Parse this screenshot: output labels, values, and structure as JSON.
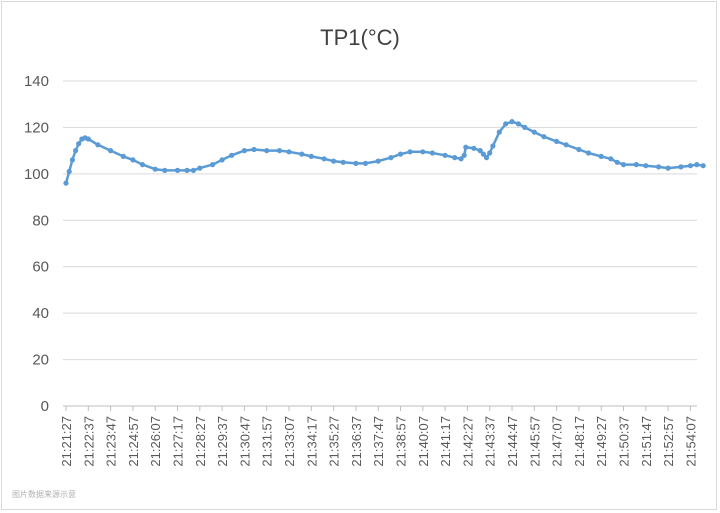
{
  "chart_data": {
    "type": "line",
    "title": "TP1(°C)",
    "xlabel": "",
    "ylabel": "",
    "ylim": [
      0,
      140
    ],
    "yticks": [
      0,
      20,
      40,
      60,
      80,
      100,
      120,
      140
    ],
    "grid": true,
    "legend": "none",
    "x_tick_labels": [
      "21:21:27",
      "21:22:37",
      "21:23:47",
      "21:24:57",
      "21:26:07",
      "21:27:17",
      "21:28:27",
      "21:29:37",
      "21:30:47",
      "21:31:57",
      "21:33:07",
      "21:34:17",
      "21:35:27",
      "21:36:37",
      "21:37:47",
      "21:38:57",
      "21:40:07",
      "21:41:17",
      "21:42:27",
      "21:43:37",
      "21:44:47",
      "21:45:57",
      "21:47:07",
      "21:48:17",
      "21:49:27",
      "21:50:37",
      "21:51:47",
      "21:52:57",
      "21:54:07"
    ],
    "series": [
      {
        "color": "#5b9bd5",
        "points": [
          [
            "21:21:27",
            96
          ],
          [
            "21:21:37",
            101
          ],
          [
            "21:21:47",
            106
          ],
          [
            "21:21:57",
            110
          ],
          [
            "21:22:07",
            113
          ],
          [
            "21:22:17",
            115
          ],
          [
            "21:22:27",
            115.5
          ],
          [
            "21:22:37",
            115
          ],
          [
            "21:23:07",
            112.5
          ],
          [
            "21:23:47",
            110
          ],
          [
            "21:24:27",
            107.5
          ],
          [
            "21:24:57",
            106
          ],
          [
            "21:25:27",
            104
          ],
          [
            "21:26:07",
            102
          ],
          [
            "21:26:37",
            101.5
          ],
          [
            "21:27:17",
            101.5
          ],
          [
            "21:27:47",
            101.5
          ],
          [
            "21:28:07",
            101.5
          ],
          [
            "21:28:27",
            102.5
          ],
          [
            "21:29:07",
            104
          ],
          [
            "21:29:37",
            106
          ],
          [
            "21:30:07",
            108
          ],
          [
            "21:30:47",
            110
          ],
          [
            "21:31:17",
            110.5
          ],
          [
            "21:31:57",
            110
          ],
          [
            "21:32:37",
            110
          ],
          [
            "21:33:07",
            109.5
          ],
          [
            "21:33:47",
            108.5
          ],
          [
            "21:34:17",
            107.5
          ],
          [
            "21:34:57",
            106.5
          ],
          [
            "21:35:27",
            105.5
          ],
          [
            "21:35:57",
            105
          ],
          [
            "21:36:37",
            104.5
          ],
          [
            "21:37:07",
            104.5
          ],
          [
            "21:37:47",
            105.5
          ],
          [
            "21:38:27",
            107
          ],
          [
            "21:38:57",
            108.5
          ],
          [
            "21:39:27",
            109.5
          ],
          [
            "21:40:07",
            109.5
          ],
          [
            "21:40:37",
            109
          ],
          [
            "21:41:17",
            108
          ],
          [
            "21:41:47",
            107
          ],
          [
            "21:42:07",
            106.5
          ],
          [
            "21:42:17",
            108
          ],
          [
            "21:42:22",
            111.5
          ],
          [
            "21:42:47",
            111
          ],
          [
            "21:43:07",
            110
          ],
          [
            "21:43:17",
            108.5
          ],
          [
            "21:43:27",
            107
          ],
          [
            "21:43:37",
            109
          ],
          [
            "21:43:47",
            112
          ],
          [
            "21:44:07",
            118
          ],
          [
            "21:44:27",
            121.5
          ],
          [
            "21:44:47",
            122.5
          ],
          [
            "21:45:07",
            121.5
          ],
          [
            "21:45:27",
            120
          ],
          [
            "21:45:57",
            118
          ],
          [
            "21:46:27",
            116
          ],
          [
            "21:47:07",
            114
          ],
          [
            "21:47:37",
            112.5
          ],
          [
            "21:48:17",
            110.5
          ],
          [
            "21:48:47",
            109
          ],
          [
            "21:49:27",
            107.5
          ],
          [
            "21:49:57",
            106.5
          ],
          [
            "21:50:17",
            105
          ],
          [
            "21:50:37",
            104
          ],
          [
            "21:51:17",
            104
          ],
          [
            "21:51:47",
            103.5
          ],
          [
            "21:52:27",
            103
          ],
          [
            "21:52:57",
            102.5
          ],
          [
            "21:53:37",
            103
          ],
          [
            "21:54:07",
            103.5
          ],
          [
            "21:54:27",
            104
          ],
          [
            "21:54:47",
            103.5
          ]
        ]
      }
    ]
  },
  "watermark": "图片数据来源示意"
}
